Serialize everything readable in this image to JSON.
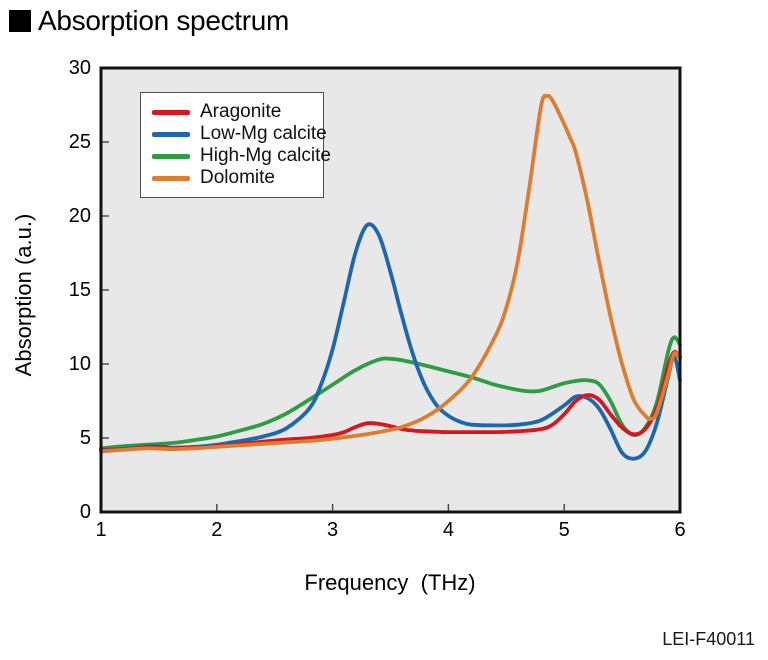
{
  "title": "Absorption spectrum",
  "figure_code": "LEI-F40011",
  "chart_data": {
    "type": "line",
    "title": "Absorption spectrum",
    "xlabel": "Frequency  (THz)",
    "ylabel": "Absorption (a.u.)",
    "xlim": [
      1,
      6
    ],
    "ylim": [
      0,
      30
    ],
    "x_ticks": [
      1,
      2,
      3,
      4,
      5,
      6
    ],
    "y_ticks": [
      0,
      5,
      10,
      15,
      20,
      25,
      30
    ],
    "grid": false,
    "legend_position": "top-left",
    "plot_background": "#e8e8e8",
    "frame_color": "#121212",
    "series": [
      {
        "name": "Aragonite",
        "color": "#d5171f",
        "points": [
          [
            1.0,
            4.15
          ],
          [
            1.15,
            4.2
          ],
          [
            1.3,
            4.3
          ],
          [
            1.45,
            4.4
          ],
          [
            1.6,
            4.3
          ],
          [
            1.8,
            4.35
          ],
          [
            2.0,
            4.45
          ],
          [
            2.2,
            4.6
          ],
          [
            2.4,
            4.75
          ],
          [
            2.6,
            4.9
          ],
          [
            2.8,
            5.0
          ],
          [
            3.0,
            5.2
          ],
          [
            3.1,
            5.4
          ],
          [
            3.2,
            5.75
          ],
          [
            3.3,
            6.0
          ],
          [
            3.4,
            5.95
          ],
          [
            3.5,
            5.8
          ],
          [
            3.6,
            5.6
          ],
          [
            3.7,
            5.5
          ],
          [
            3.8,
            5.45
          ],
          [
            4.0,
            5.4
          ],
          [
            4.2,
            5.4
          ],
          [
            4.4,
            5.4
          ],
          [
            4.6,
            5.45
          ],
          [
            4.8,
            5.6
          ],
          [
            4.9,
            5.9
          ],
          [
            5.0,
            6.6
          ],
          [
            5.1,
            7.5
          ],
          [
            5.2,
            7.9
          ],
          [
            5.3,
            7.6
          ],
          [
            5.4,
            6.6
          ],
          [
            5.5,
            5.7
          ],
          [
            5.6,
            5.25
          ],
          [
            5.7,
            5.6
          ],
          [
            5.8,
            7.0
          ],
          [
            5.9,
            9.9
          ],
          [
            5.95,
            10.8
          ],
          [
            6.0,
            10.5
          ]
        ]
      },
      {
        "name": "Low-Mg calcite",
        "color": "#1c68b0",
        "points": [
          [
            1.0,
            4.2
          ],
          [
            1.15,
            4.25
          ],
          [
            1.3,
            4.35
          ],
          [
            1.45,
            4.45
          ],
          [
            1.6,
            4.35
          ],
          [
            1.8,
            4.4
          ],
          [
            2.0,
            4.55
          ],
          [
            2.2,
            4.8
          ],
          [
            2.4,
            5.1
          ],
          [
            2.6,
            5.65
          ],
          [
            2.8,
            7.0
          ],
          [
            2.9,
            8.6
          ],
          [
            3.0,
            11.0
          ],
          [
            3.1,
            14.3
          ],
          [
            3.2,
            17.6
          ],
          [
            3.3,
            19.4
          ],
          [
            3.4,
            18.7
          ],
          [
            3.5,
            16.2
          ],
          [
            3.6,
            13.2
          ],
          [
            3.7,
            10.5
          ],
          [
            3.8,
            8.5
          ],
          [
            3.9,
            7.2
          ],
          [
            4.0,
            6.5
          ],
          [
            4.1,
            6.1
          ],
          [
            4.2,
            5.9
          ],
          [
            4.4,
            5.85
          ],
          [
            4.6,
            5.9
          ],
          [
            4.8,
            6.2
          ],
          [
            5.0,
            7.2
          ],
          [
            5.1,
            7.8
          ],
          [
            5.2,
            7.7
          ],
          [
            5.3,
            7.0
          ],
          [
            5.4,
            5.6
          ],
          [
            5.5,
            4.0
          ],
          [
            5.6,
            3.6
          ],
          [
            5.7,
            4.1
          ],
          [
            5.8,
            6.0
          ],
          [
            5.9,
            9.2
          ],
          [
            5.95,
            10.5
          ],
          [
            6.0,
            8.9
          ]
        ]
      },
      {
        "name": "High-Mg calcite",
        "color": "#2d9c42",
        "points": [
          [
            1.0,
            4.3
          ],
          [
            1.2,
            4.45
          ],
          [
            1.4,
            4.55
          ],
          [
            1.6,
            4.65
          ],
          [
            1.8,
            4.85
          ],
          [
            2.0,
            5.1
          ],
          [
            2.2,
            5.5
          ],
          [
            2.4,
            5.95
          ],
          [
            2.6,
            6.65
          ],
          [
            2.8,
            7.6
          ],
          [
            3.0,
            8.6
          ],
          [
            3.2,
            9.6
          ],
          [
            3.4,
            10.3
          ],
          [
            3.5,
            10.35
          ],
          [
            3.6,
            10.25
          ],
          [
            3.8,
            9.9
          ],
          [
            4.0,
            9.5
          ],
          [
            4.2,
            9.1
          ],
          [
            4.4,
            8.6
          ],
          [
            4.6,
            8.25
          ],
          [
            4.7,
            8.15
          ],
          [
            4.8,
            8.2
          ],
          [
            4.9,
            8.45
          ],
          [
            5.0,
            8.7
          ],
          [
            5.1,
            8.85
          ],
          [
            5.2,
            8.9
          ],
          [
            5.3,
            8.65
          ],
          [
            5.4,
            7.5
          ],
          [
            5.5,
            5.9
          ],
          [
            5.6,
            5.2
          ],
          [
            5.7,
            5.7
          ],
          [
            5.8,
            7.4
          ],
          [
            5.9,
            10.9
          ],
          [
            5.95,
            11.8
          ],
          [
            6.0,
            11.3
          ]
        ]
      },
      {
        "name": "Dolomite",
        "color": "#dc7e30",
        "points": [
          [
            1.0,
            4.1
          ],
          [
            1.2,
            4.2
          ],
          [
            1.4,
            4.3
          ],
          [
            1.6,
            4.25
          ],
          [
            1.8,
            4.3
          ],
          [
            2.0,
            4.4
          ],
          [
            2.2,
            4.5
          ],
          [
            2.4,
            4.6
          ],
          [
            2.6,
            4.7
          ],
          [
            2.8,
            4.8
          ],
          [
            3.0,
            4.95
          ],
          [
            3.2,
            5.15
          ],
          [
            3.4,
            5.4
          ],
          [
            3.6,
            5.75
          ],
          [
            3.8,
            6.4
          ],
          [
            4.0,
            7.5
          ],
          [
            4.2,
            9.1
          ],
          [
            4.4,
            11.8
          ],
          [
            4.5,
            13.8
          ],
          [
            4.6,
            17.0
          ],
          [
            4.7,
            22.0
          ],
          [
            4.8,
            27.4
          ],
          [
            4.85,
            28.1
          ],
          [
            4.9,
            27.8
          ],
          [
            5.0,
            26.2
          ],
          [
            5.05,
            25.3
          ],
          [
            5.1,
            24.3
          ],
          [
            5.2,
            21.0
          ],
          [
            5.3,
            17.0
          ],
          [
            5.4,
            13.2
          ],
          [
            5.5,
            10.0
          ],
          [
            5.6,
            7.6
          ],
          [
            5.7,
            6.5
          ],
          [
            5.75,
            6.3
          ],
          [
            5.8,
            6.7
          ],
          [
            5.9,
            9.3
          ],
          [
            5.95,
            10.7
          ],
          [
            6.0,
            10.4
          ]
        ]
      }
    ]
  }
}
